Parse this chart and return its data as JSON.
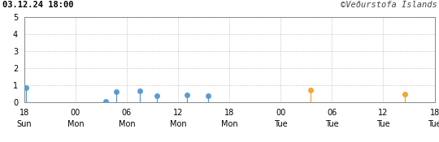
{
  "title_left": "03.12.24 18:00",
  "title_right": "©Veðurstofa Íslands",
  "xlim": [
    18,
    66
  ],
  "ylim": [
    0,
    5
  ],
  "yticks": [
    0,
    1,
    2,
    3,
    4,
    5
  ],
  "xtick_positions": [
    18,
    24,
    30,
    36,
    42,
    48,
    54,
    60,
    66
  ],
  "xtick_labels_hour": [
    "18",
    "00",
    "06",
    "12",
    "18",
    "00",
    "06",
    "12",
    "18"
  ],
  "xtick_labels_day": [
    "Sun",
    "Mon",
    "Mon",
    "Mon",
    "Mon",
    "Tue",
    "Tue",
    "Tue",
    "Tue"
  ],
  "earthquakes": [
    {
      "x": 18.2,
      "magnitude": 0.85,
      "color": "#5b9bd5"
    },
    {
      "x": 27.5,
      "magnitude": 0.05,
      "color": "#5b9bd5"
    },
    {
      "x": 28.8,
      "magnitude": 0.62,
      "color": "#5b9bd5"
    },
    {
      "x": 31.5,
      "magnitude": 0.68,
      "color": "#5b9bd5"
    },
    {
      "x": 33.5,
      "magnitude": 0.37,
      "color": "#5b9bd5"
    },
    {
      "x": 37.0,
      "magnitude": 0.42,
      "color": "#5b9bd5"
    },
    {
      "x": 39.5,
      "magnitude": 0.38,
      "color": "#5b9bd5"
    },
    {
      "x": 51.5,
      "magnitude": 0.7,
      "color": "#f0a830"
    },
    {
      "x": 62.5,
      "magnitude": 0.5,
      "color": "#f0a830"
    }
  ],
  "background_color": "#ffffff",
  "grid_color": "#aaaaaa",
  "marker_size": 5,
  "font_size": 7
}
